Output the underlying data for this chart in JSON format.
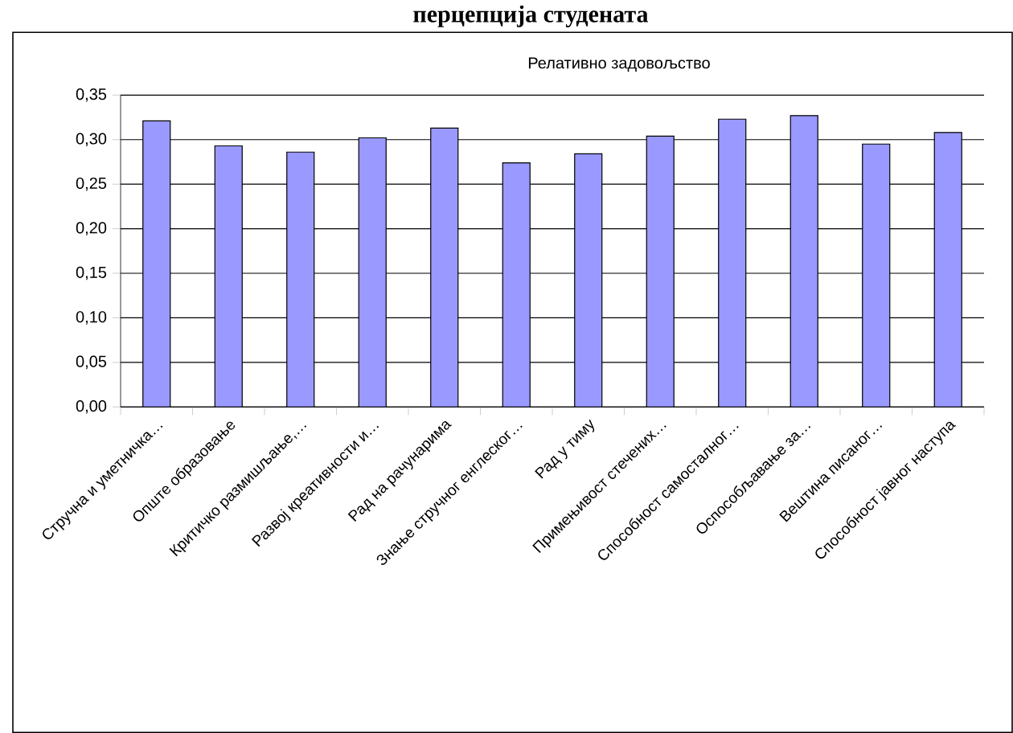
{
  "chart_data": {
    "type": "bar",
    "title": "перцепција студената",
    "subtitle": "Релативно задовољство",
    "categories": [
      "Стручна и уметничка…",
      "Опште образовање",
      "Критичко размишљање,…",
      "Развој креативности и…",
      "Рад на рачунарима",
      "Знање стручног енглеског…",
      "Рад у тиму",
      "Примењивост стечених…",
      "Способност самосталног…",
      "Оспособљавање за…",
      "Вештина писаног…",
      "Способност јавног наступа"
    ],
    "values": [
      0.321,
      0.293,
      0.286,
      0.302,
      0.313,
      0.274,
      0.284,
      0.304,
      0.323,
      0.327,
      0.295,
      0.308
    ],
    "color": "#9999ff",
    "ylim": [
      0,
      0.35
    ],
    "yticks": [
      {
        "value": 0,
        "label": "0,00"
      },
      {
        "value": 0.05,
        "label": "0,05"
      },
      {
        "value": 0.1,
        "label": "0,10"
      },
      {
        "value": 0.15,
        "label": "0,15"
      },
      {
        "value": 0.2,
        "label": "0,20"
      },
      {
        "value": 0.25,
        "label": "0,25"
      },
      {
        "value": 0.3,
        "label": "0,30"
      },
      {
        "value": 0.35,
        "label": "0,35"
      }
    ],
    "grid": "y"
  }
}
